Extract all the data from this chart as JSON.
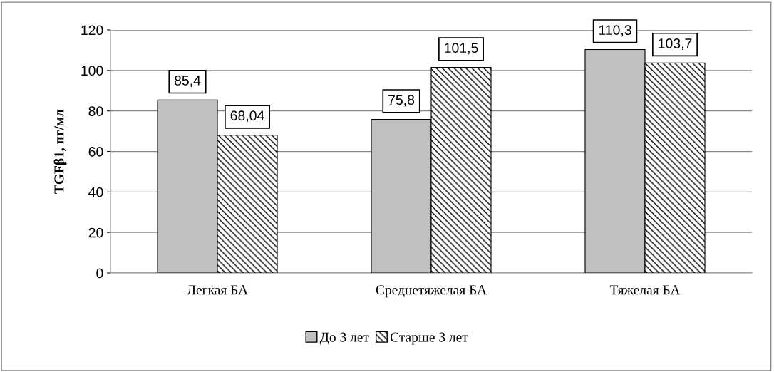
{
  "chart_data": {
    "type": "bar",
    "ylabel": "TGFβ1, пг/мл",
    "categories": [
      "Легкая БА",
      "Среднетяжелая БА",
      "Тяжелая БА"
    ],
    "series": [
      {
        "name": "До 3 лет",
        "color": "#c0c0c0",
        "values": [
          85.4,
          75.8,
          110.3
        ],
        "value_labels": [
          "85,4",
          "75,8",
          "110,3"
        ]
      },
      {
        "name": "Старше 3 лет",
        "color": "#000000",
        "values": [
          68.04,
          101.5,
          103.7
        ],
        "value_labels": [
          "68,04",
          "101,5",
          "103,7"
        ]
      }
    ],
    "ylim": [
      0,
      120
    ],
    "yticks": [
      0,
      20,
      40,
      60,
      80,
      100,
      120
    ],
    "grid": "y",
    "legend": "bottom"
  }
}
